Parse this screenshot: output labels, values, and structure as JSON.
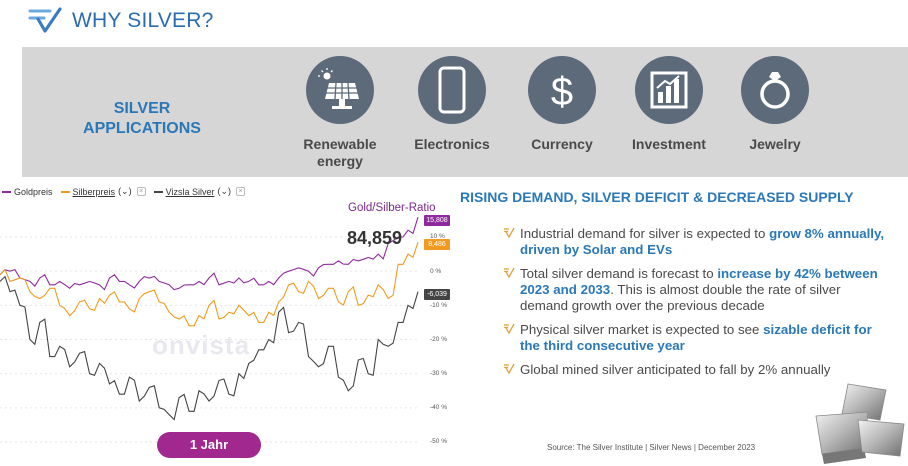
{
  "header": {
    "title": "WHY SILVER?",
    "logo_icon": "check-lines-logo-icon"
  },
  "applications": {
    "label_line1": "SILVER",
    "label_line2": "APPLICATIONS",
    "items": [
      {
        "label_line1": "Renewable",
        "label_line2": "energy",
        "icon": "solar-panel-icon"
      },
      {
        "label_line1": "Electronics",
        "label_line2": "",
        "icon": "smartphone-icon"
      },
      {
        "label_line1": "Currency",
        "label_line2": "",
        "icon": "dollar-icon"
      },
      {
        "label_line1": "Investment",
        "label_line2": "",
        "icon": "bar-chart-icon"
      },
      {
        "label_line1": "Jewelry",
        "label_line2": "",
        "icon": "ring-icon"
      }
    ]
  },
  "chart": {
    "legend": [
      {
        "label": "Goldpreis",
        "color": "#8e2b9c"
      },
      {
        "label": "Silberpreis",
        "suffix": "(⌄)",
        "color": "#f29a1f"
      },
      {
        "label": "Vizsla Silver",
        "suffix": "(⌄)",
        "color": "#444444"
      }
    ],
    "ratio_title": "Gold/Silber-Ratio",
    "ratio_value": "84,859",
    "tags": {
      "gold": "15,808",
      "silver": "8,486",
      "vizsla": "-6,039"
    },
    "y_ticks": [
      "10 %",
      "0 %",
      "-10 %",
      "-20 %",
      "-30 %",
      "-40 %",
      "-50 %"
    ],
    "watermark": "onvista",
    "period_button": "1 Jahr"
  },
  "chart_data": {
    "type": "line",
    "title": "Gold/Silber-Ratio",
    "ylabel": "%",
    "ylim": [
      -50,
      15
    ],
    "y_ticks": [
      10,
      0,
      -10,
      -20,
      -30,
      -40,
      -50
    ],
    "period": "1 Jahr",
    "series": [
      {
        "name": "Goldpreis",
        "color": "#8e2b9c",
        "last": 15.808,
        "values": [
          -1,
          0,
          -2,
          -3,
          -2,
          -4,
          -3,
          -5,
          -4,
          -3,
          -4,
          -2,
          -3,
          -4,
          -3,
          -2,
          -3,
          -4,
          -5,
          -4,
          -3,
          -2,
          -4,
          -3,
          -2,
          -3,
          -4,
          -3,
          -2,
          0,
          1,
          0,
          1,
          2,
          3,
          2,
          3,
          4,
          5,
          8,
          10,
          12,
          15.8
        ]
      },
      {
        "name": "Silberpreis",
        "color": "#f29a1f",
        "last": 8.486,
        "values": [
          -1,
          -3,
          -2,
          -6,
          -8,
          -5,
          -10,
          -13,
          -9,
          -11,
          -8,
          -7,
          -9,
          -11,
          -8,
          -6,
          -9,
          -12,
          -14,
          -16,
          -13,
          -10,
          -14,
          -12,
          -10,
          -13,
          -15,
          -12,
          -9,
          -4,
          -6,
          -3,
          -8,
          -5,
          -9,
          -6,
          -10,
          -7,
          -4,
          -8,
          2,
          5,
          8.5
        ]
      },
      {
        "name": "Vizsla Silver",
        "color": "#444444",
        "last": -6.039,
        "values": [
          -3,
          -6,
          -10,
          -20,
          -15,
          -25,
          -22,
          -28,
          -24,
          -30,
          -27,
          -33,
          -36,
          -31,
          -38,
          -34,
          -40,
          -42,
          -37,
          -41,
          -35,
          -38,
          -32,
          -36,
          -30,
          -27,
          -23,
          -20,
          -12,
          -18,
          -15,
          -25,
          -28,
          -22,
          -31,
          -35,
          -26,
          -30,
          -20,
          -22,
          -15,
          -10,
          -6.0
        ]
      }
    ]
  },
  "panel": {
    "title": "RISING DEMAND, SILVER DEFICIT & DECREASED SUPPLY",
    "bullets": [
      {
        "pre": "Industrial demand for silver is expected to ",
        "hl": "grow 8% annually, driven by Solar and EVs",
        "post": ""
      },
      {
        "pre": "Total silver demand is forecast to ",
        "hl": "increase by 42% between 2023 and 2033",
        "post": ". This is almost double the rate of silver demand growth over the previous decade"
      },
      {
        "pre": "Physical silver market is expected to see ",
        "hl": "sizable deficit for the third consecutive year",
        "post": ""
      },
      {
        "pre": "Global mined silver anticipated to fall by 2% annually",
        "hl": "",
        "post": ""
      }
    ],
    "source": "Source: The Silver Institute | Silver News | December 2023",
    "image_icon": "silver-bars-icon"
  }
}
